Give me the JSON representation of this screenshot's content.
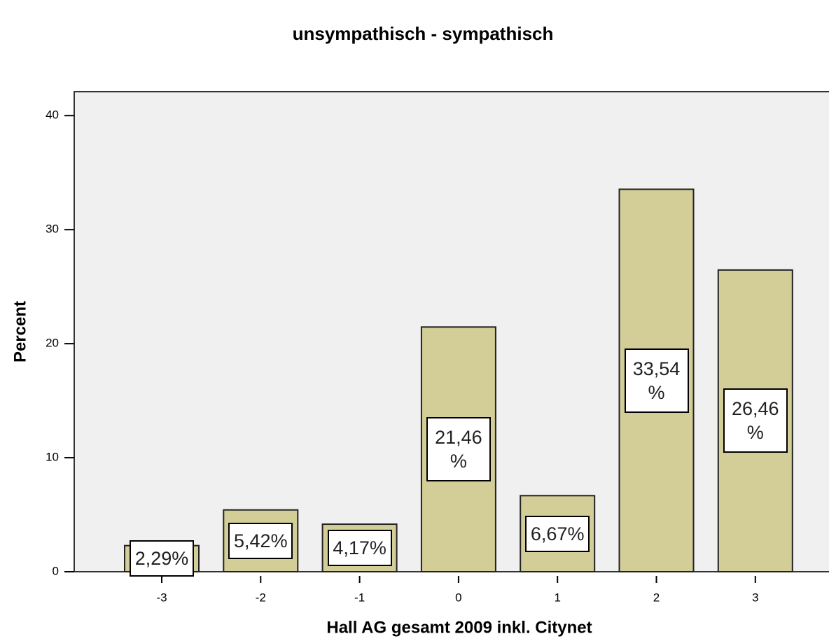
{
  "chart_data": {
    "type": "bar",
    "title": "unsympathisch - sympathisch",
    "x_label": "Hall AG gesamt 2009 inkl. Citynet",
    "y_label": "Percent",
    "categories": [
      "-3",
      "-2",
      "-1",
      "0",
      "1",
      "2",
      "3"
    ],
    "values": [
      2.29,
      5.42,
      4.17,
      21.46,
      6.67,
      33.54,
      26.46
    ],
    "value_labels": [
      "2,29%",
      "5,42%",
      "4,17%",
      "21,46 %",
      "6,67%",
      "33,54 %",
      "26,46 %"
    ],
    "color": "#d3ce97",
    "ylim": [
      0,
      42.1
    ],
    "yticks": [
      0,
      10,
      20,
      30,
      40
    ]
  }
}
